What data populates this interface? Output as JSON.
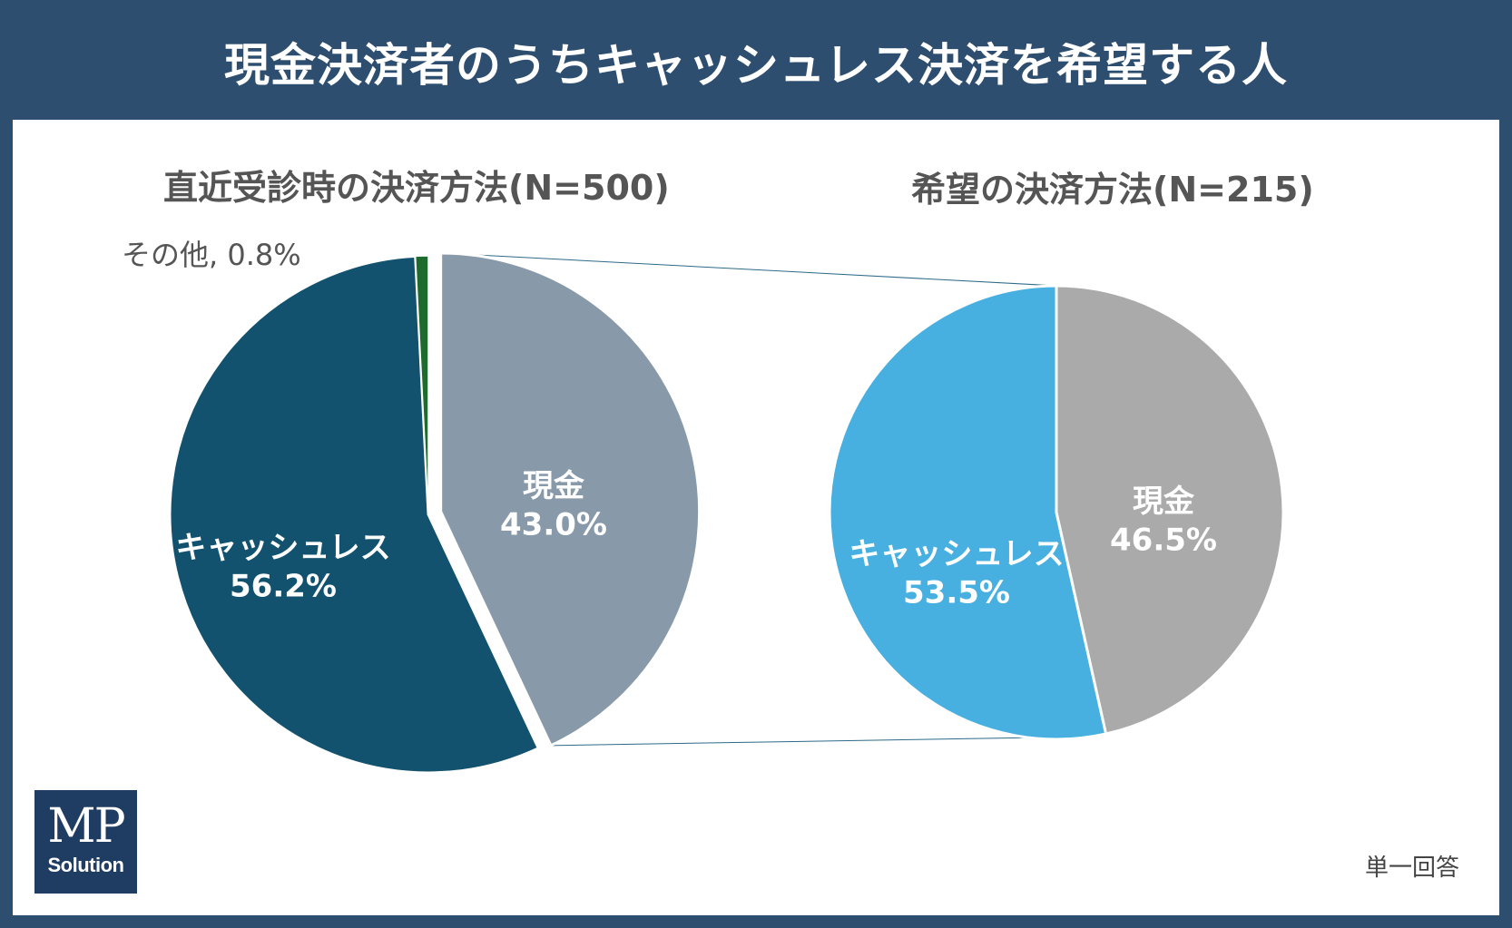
{
  "title": "現金決済者のうちキャッシュレス決済を希望する人",
  "note": "単一回答",
  "logo": {
    "mark": "MP",
    "sub": "Solution"
  },
  "colors": {
    "cashless_left": "#12526f",
    "cash_left": "#8899a9",
    "other_left": "#1e6b2e",
    "cashless_right": "#48b0e0",
    "cash_right": "#aaaaaa",
    "connector": "#2e6a89",
    "frame": "#2e4e70"
  },
  "chart_data": [
    {
      "type": "pie",
      "title": "直近受診時の決済方法(N=500)",
      "slices": [
        {
          "label": "現金",
          "value": 43.0,
          "value_label": "43.0%"
        },
        {
          "label": "キャッシュレス",
          "value": 56.2,
          "value_label": "56.2%"
        },
        {
          "label": "その他",
          "value": 0.8,
          "value_label": "その他, 0.8%"
        }
      ]
    },
    {
      "type": "pie",
      "title": "希望の決済方法(N=215)",
      "slices": [
        {
          "label": "現金",
          "value": 46.5,
          "value_label": "46.5%"
        },
        {
          "label": "キャッシュレス",
          "value": 53.5,
          "value_label": "53.5%"
        }
      ]
    }
  ]
}
